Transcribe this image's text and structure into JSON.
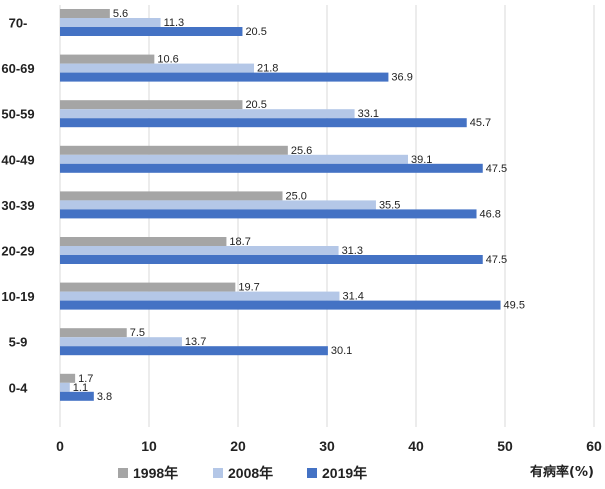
{
  "chart_data": {
    "type": "bar",
    "orientation": "horizontal",
    "categories": [
      "70-",
      "60-69",
      "50-59",
      "40-49",
      "30-39",
      "20-29",
      "10-19",
      "5-9",
      "0-4"
    ],
    "series": [
      {
        "name": "1998年",
        "color": "#a5a5a5",
        "values": [
          5.6,
          10.6,
          20.5,
          25.6,
          25.0,
          18.7,
          19.7,
          7.5,
          1.7
        ]
      },
      {
        "name": "2008年",
        "color": "#b4c7e7",
        "values": [
          11.3,
          21.8,
          33.1,
          39.1,
          35.5,
          31.3,
          31.4,
          13.7,
          1.1
        ]
      },
      {
        "name": "2019年",
        "color": "#4472c4",
        "values": [
          20.5,
          36.9,
          45.7,
          47.5,
          46.8,
          47.5,
          49.5,
          30.1,
          3.8
        ]
      }
    ],
    "value_labels": [
      [
        "5.6",
        "10.6",
        "20.5",
        "25.6",
        "25.0",
        "18.7",
        "19.7",
        "7.5",
        "1.7"
      ],
      [
        "11.3",
        "21.8",
        "33.1",
        "39.1",
        "35.5",
        "31.3",
        "31.4",
        "13.7",
        "1.1"
      ],
      [
        "20.5",
        "36.9",
        "45.7",
        "47.5",
        "46.8",
        "47.5",
        "49.5",
        "30.1",
        "3.8"
      ]
    ],
    "xlim": [
      0,
      60
    ],
    "xticks": [
      "0",
      "10",
      "20",
      "30",
      "40",
      "50",
      "60"
    ],
    "xlabel": "有病率(%)",
    "grid": true,
    "legend_position": "bottom"
  }
}
